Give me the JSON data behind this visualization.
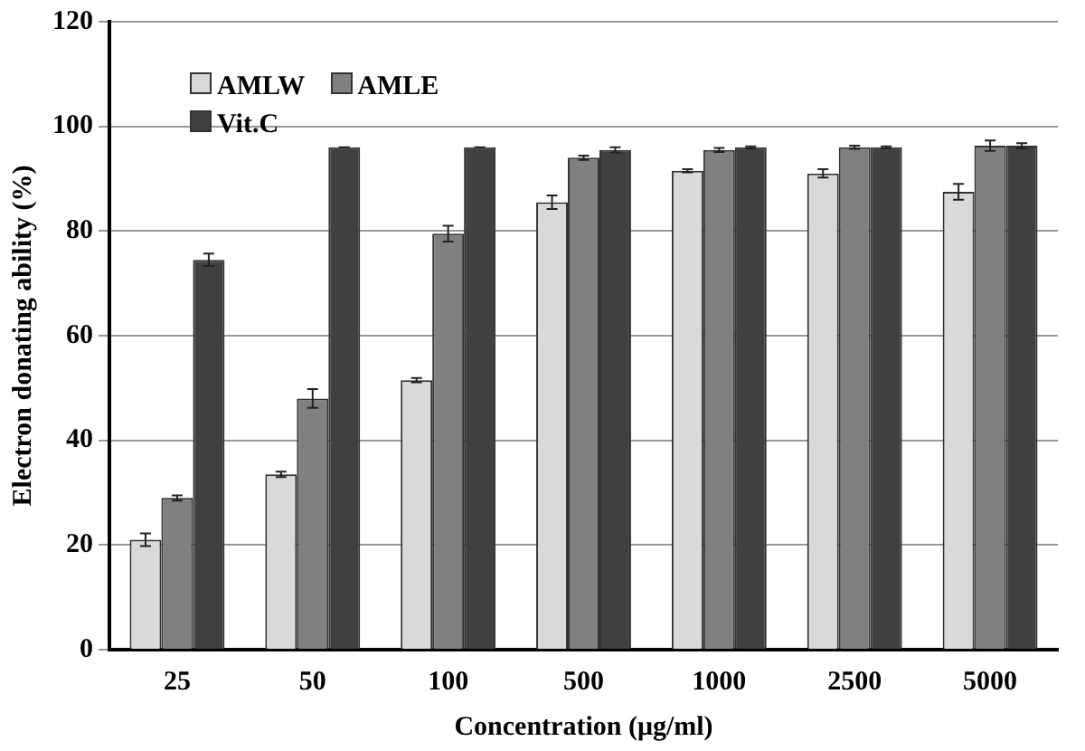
{
  "chart_data": {
    "type": "bar",
    "xlabel": "Concentration (μg/ml)",
    "ylabel": "Electron donating ability (%)",
    "categories": [
      "25",
      "50",
      "100",
      "500",
      "1000",
      "2500",
      "5000"
    ],
    "series": [
      {
        "name": "AMLW",
        "color": "#d9d9d9",
        "values": [
          21,
          33.5,
          51.5,
          85.5,
          91.5,
          91,
          87.5
        ],
        "errors": [
          1.2,
          0.5,
          0.4,
          1.3,
          0.3,
          0.8,
          1.5
        ]
      },
      {
        "name": "AMLE",
        "color": "#808080",
        "values": [
          29,
          48,
          79.5,
          94,
          95.5,
          96,
          96.3
        ],
        "errors": [
          0.5,
          1.8,
          1.5,
          0.4,
          0.4,
          0.3,
          1
        ]
      },
      {
        "name": "Vit.C",
        "color": "#404040",
        "values": [
          74.5,
          96,
          96,
          95.5,
          96,
          96,
          96.3
        ],
        "errors": [
          1.2,
          0,
          0,
          0.5,
          0.2,
          0.2,
          0.5
        ]
      }
    ],
    "ylim": [
      0,
      120
    ],
    "yticks": [
      0,
      20,
      40,
      60,
      80,
      100,
      120
    ],
    "grid": "y",
    "legend": "top left"
  }
}
